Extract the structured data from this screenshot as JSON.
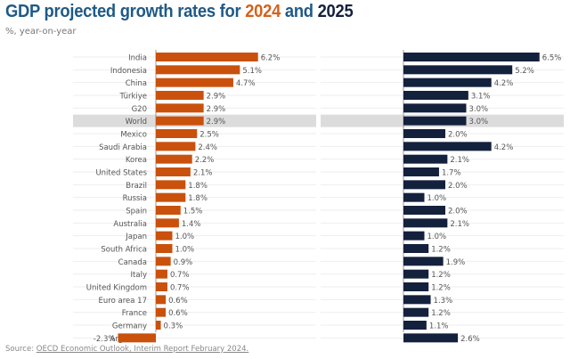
{
  "title": {
    "prefix": "GDP projected growth rates for ",
    "year1": "2024",
    "mid": " and ",
    "year2": "2025"
  },
  "subtitle": "%, year-on-year",
  "source": {
    "label": "Source: ",
    "link": "OECD Economic Outlook, Interim Report February 2024."
  },
  "colors": {
    "series_2024": "#c9510c",
    "series_2025": "#14213d",
    "highlight": "#dcdcdc",
    "title": "#1f5a86"
  },
  "chart_data": {
    "type": "bar",
    "orientation": "horizontal",
    "categories": [
      "India",
      "Indonesia",
      "China",
      "Türkiye",
      "G20",
      "World",
      "Mexico",
      "Saudi Arabia",
      "Korea",
      "United States",
      "Brazil",
      "Russia",
      "Spain",
      "Australia",
      "Japan",
      "South Africa",
      "Canada",
      "Italy",
      "United Kingdom",
      "Euro area 17",
      "France",
      "Germany",
      "Argentina"
    ],
    "highlighted_category": "World",
    "series": [
      {
        "name": "2024",
        "values": [
          6.2,
          5.1,
          4.7,
          2.9,
          2.9,
          2.9,
          2.5,
          2.4,
          2.2,
          2.1,
          1.8,
          1.8,
          1.5,
          1.4,
          1.0,
          1.0,
          0.9,
          0.7,
          0.7,
          0.6,
          0.6,
          0.3,
          -2.3
        ]
      },
      {
        "name": "2025",
        "values": [
          6.5,
          5.2,
          4.2,
          3.1,
          3.0,
          3.0,
          2.0,
          4.2,
          2.1,
          1.7,
          2.0,
          1.0,
          2.0,
          2.1,
          1.0,
          1.2,
          1.9,
          1.2,
          1.2,
          1.3,
          1.2,
          1.1,
          2.6
        ]
      }
    ],
    "value_suffix": "%",
    "grid": true,
    "legend": "none"
  }
}
